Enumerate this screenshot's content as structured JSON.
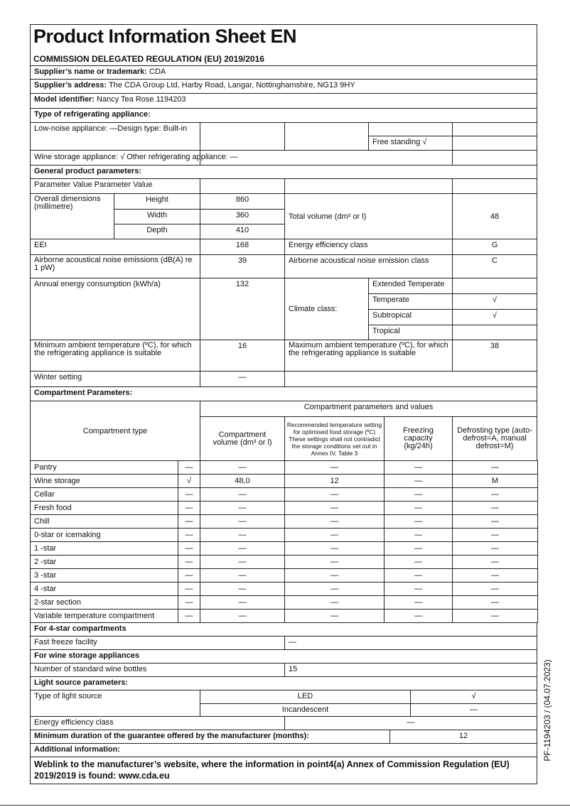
{
  "title": "Product Information Sheet  EN",
  "subtitle": "COMMISSION DELEGATED REGULATION (EU) 2019/2016",
  "supplier_name": {
    "label": "Supplier’s name or trademark:",
    "value": "CDA"
  },
  "supplier_address": {
    "label": "Supplier’s address:",
    "value": "The CDA Group Ltd, Harby Road, Langar, Nottinghamshire, NG13 9HY"
  },
  "model": {
    "label": "Model identifier:",
    "value": "Nancy Tea Rose 1194203"
  },
  "type_heading": "Type of refrigerating appliance:",
  "low_noise": "Low-noise appliance: —Design type: Built-in",
  "free_standing": "Free standing √",
  "wine_storage": "Wine storage appliance: √ Other refrigerating appliance: —",
  "general_heading": "General product parameters:",
  "param_value": "Parameter Value Parameter Value",
  "dimensions": {
    "label": "Overall dimensions (millimetre)",
    "height_label": "Height",
    "height": "860",
    "width_label": "Width",
    "width": "360",
    "depth_label": "Depth",
    "depth": "410"
  },
  "total_volume": {
    "label": "Total volume (dm³ or l)",
    "value": "48"
  },
  "eei": {
    "label": "EEI",
    "value": "168"
  },
  "energy_class": {
    "label": "Energy efficiency class",
    "value": "G"
  },
  "noise": {
    "label": "Airborne acoustical noise emissions (dB(A) re 1 pW)",
    "value": "39"
  },
  "noise_class": {
    "label": "Airborne acoustical noise emission class",
    "value": "C"
  },
  "annual_energy": {
    "label": "Annual energy consumption (kWh/a)",
    "value": "132"
  },
  "climate": {
    "label": "Climate class:",
    "rows": [
      {
        "name": "Extended Temperate",
        "value": ""
      },
      {
        "name": "Temperate",
        "value": "√"
      },
      {
        "name": "Subtropical",
        "value": "√"
      },
      {
        "name": "Tropical",
        "value": ""
      }
    ]
  },
  "min_temp": {
    "label": "Minimum ambient temperature (ºC), for which the refrigerating appliance is suitable",
    "value": "16"
  },
  "max_temp": {
    "label": "Maximum ambient temperature (ºC), for which the refrigerating appliance is suitable",
    "value": "38"
  },
  "winter": {
    "label": "Winter setting",
    "value": "—"
  },
  "compartment_heading": "Compartment Parameters:",
  "compartment_header": {
    "type": "Compartment type",
    "group": "Compartment parameters and values",
    "volume": "Compartment volume (dm³ or l)",
    "temp": "Recommended temperature setting for optimised food storage (ºC) These settings shall not contradict the storage conditions set out in Annex IV, Table 3",
    "freezing": "Freezing capacity (kg/24h)",
    "defrost": "Defrosting type (auto-defrost=A, manual defrost=M)"
  },
  "compartments": [
    [
      "Pantry",
      "—",
      "—",
      "—",
      "—",
      "—"
    ],
    [
      "Wine storage",
      "√",
      "48,0",
      "12",
      "—",
      "M"
    ],
    [
      "Cellar",
      "—",
      "—",
      "—",
      "—",
      "—"
    ],
    [
      "Fresh food",
      "—",
      "—",
      "—",
      "—",
      "—"
    ],
    [
      "Chill",
      "—",
      "—",
      "—",
      "—",
      "—"
    ],
    [
      "0-star or icemaking",
      "—",
      "—",
      "—",
      "—",
      "—"
    ],
    [
      "1 -star",
      "—",
      "—",
      "—",
      "—",
      "—"
    ],
    [
      "2 -star",
      "—",
      "—",
      "—",
      "—",
      "—"
    ],
    [
      "3 -star",
      "—",
      "—",
      "—",
      "—",
      "—"
    ],
    [
      "4 -star",
      "—",
      "—",
      "—",
      "—",
      "—"
    ],
    [
      "2-star section",
      "—",
      "—",
      "—",
      "—",
      "—"
    ],
    [
      "Variable temperature compartment",
      "—",
      "—",
      "—",
      "—",
      "—"
    ]
  ],
  "four_star_heading": "For 4-star compartments",
  "fast_freeze": {
    "label": "Fast freeze facility",
    "value": "—"
  },
  "wine_heading": "For wine storage appliances",
  "bottles": {
    "label": "Number of standard wine bottles",
    "value": "15"
  },
  "light_heading": "Light source parameters:",
  "light_type": {
    "label": "Type of light source",
    "led": "LED",
    "led_value": "√",
    "incandescent": "Incandescent",
    "incandescent_value": "—"
  },
  "light_class": {
    "label": "Energy efficiency class",
    "value": "—"
  },
  "guarantee": {
    "label": "Minimum duration of the guarantee offered by the manufacturer (months):",
    "value": "12"
  },
  "additional_heading": "Additional information:",
  "weblink": "Weblink to the manufacturer’s website, where the information in point4(a) Annex of Commission Regulation (EU) 2019/2019 is found: www.cda.eu",
  "side_code": "PF-1194203 / (04.07.2023)"
}
